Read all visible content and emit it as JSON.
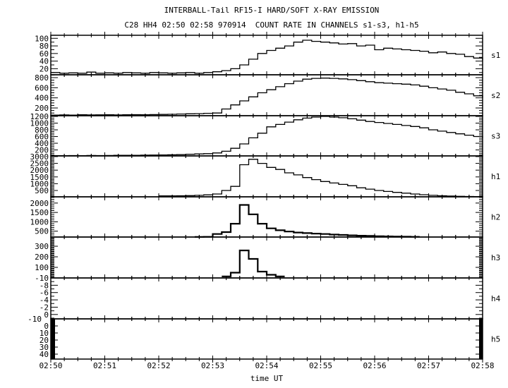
{
  "chart_data": {
    "type": "line",
    "title": "INTERBALL-Tail RF15-I HARD/SOFT X-RAY EMISSION",
    "subtitle": "C28 HH4 02:50 02:58 970914  COUNT RATE IN CHANNELS s1-s3, h1-h5",
    "xlabel": "time UT",
    "xlim": [
      "02:50:00",
      "02:58:00"
    ],
    "x_tick_labels": [
      "02:50",
      "02:51",
      "02:52",
      "02:53",
      "02:54",
      "02:55",
      "02:56",
      "02:57",
      "02:58"
    ],
    "grid": false,
    "line_color": "#000000",
    "background": "#ffffff",
    "x": [
      "02:50:00",
      "02:50:10",
      "02:50:20",
      "02:50:30",
      "02:50:40",
      "02:50:50",
      "02:51:00",
      "02:51:10",
      "02:51:20",
      "02:51:30",
      "02:51:40",
      "02:51:50",
      "02:52:00",
      "02:52:10",
      "02:52:20",
      "02:52:30",
      "02:52:40",
      "02:52:50",
      "02:53:00",
      "02:53:10",
      "02:53:20",
      "02:53:30",
      "02:53:40",
      "02:53:50",
      "02:54:00",
      "02:54:10",
      "02:54:20",
      "02:54:30",
      "02:54:40",
      "02:54:50",
      "02:55:00",
      "02:55:10",
      "02:55:20",
      "02:55:30",
      "02:55:40",
      "02:55:50",
      "02:56:00",
      "02:56:10",
      "02:56:20",
      "02:56:30",
      "02:56:40",
      "02:56:50",
      "02:57:00",
      "02:57:10",
      "02:57:20",
      "02:57:30",
      "02:57:40",
      "02:57:50",
      "02:58:00"
    ],
    "panels": [
      {
        "name": "s1",
        "ylim": [
          4,
          108
        ],
        "y_tick_labels": [
          20,
          40,
          60,
          80,
          100
        ],
        "minor_step": 10,
        "values": [
          10,
          8,
          9,
          8,
          11,
          8,
          9,
          8,
          10,
          9,
          8,
          10,
          9,
          8,
          9,
          10,
          8,
          10,
          12,
          15,
          20,
          30,
          45,
          60,
          68,
          74,
          80,
          90,
          95,
          92,
          90,
          88,
          85,
          86,
          80,
          82,
          70,
          74,
          72,
          70,
          68,
          66,
          62,
          64,
          60,
          58,
          52,
          48,
          42
        ]
      },
      {
        "name": "s2",
        "ylim": [
          47,
          856
        ],
        "y_tick_labels": [
          200,
          400,
          600,
          800
        ],
        "minor_step": 50,
        "values": [
          60,
          62,
          60,
          65,
          62,
          64,
          66,
          63,
          65,
          68,
          66,
          70,
          72,
          75,
          80,
          85,
          88,
          95,
          100,
          180,
          260,
          340,
          420,
          500,
          560,
          620,
          680,
          730,
          770,
          785,
          790,
          785,
          775,
          760,
          740,
          720,
          700,
          690,
          680,
          670,
          655,
          630,
          600,
          575,
          550,
          510,
          480,
          440,
          400
        ]
      },
      {
        "name": "s3",
        "ylim": [
          22,
          1222
        ],
        "y_tick_labels": [
          200,
          400,
          600,
          800,
          1000,
          1200
        ],
        "minor_step": 50,
        "values": [
          30,
          30,
          32,
          30,
          35,
          33,
          35,
          38,
          40,
          40,
          45,
          48,
          50,
          55,
          60,
          70,
          80,
          90,
          110,
          160,
          250,
          380,
          560,
          700,
          890,
          960,
          1030,
          1100,
          1150,
          1180,
          1200,
          1180,
          1160,
          1130,
          1090,
          1050,
          1020,
          990,
          960,
          930,
          900,
          860,
          800,
          760,
          720,
          680,
          640,
          600,
          560
        ]
      },
      {
        "name": "h1",
        "ylim": [
          32,
          3050
        ],
        "y_tick_labels": [
          500,
          1000,
          1500,
          2000,
          2500,
          3000
        ],
        "minor_step": 100,
        "values": [
          null,
          null,
          null,
          null,
          null,
          null,
          null,
          null,
          null,
          null,
          null,
          null,
          100,
          100,
          110,
          120,
          140,
          180,
          240,
          500,
          800,
          2400,
          2800,
          2500,
          2200,
          2050,
          1800,
          1650,
          1450,
          1300,
          1160,
          1050,
          950,
          850,
          700,
          600,
          500,
          430,
          360,
          300,
          240,
          190,
          140,
          110,
          90,
          70,
          60,
          55,
          50
        ]
      },
      {
        "name": "h2",
        "ylim": [
          188,
          2333
        ],
        "y_tick_labels": [
          500,
          1000,
          1500,
          2000
        ],
        "minor_step": 100,
        "values": [
          null,
          null,
          null,
          null,
          null,
          null,
          null,
          null,
          null,
          null,
          null,
          null,
          null,
          null,
          null,
          null,
          190,
          200,
          350,
          450,
          900,
          1900,
          1400,
          900,
          650,
          550,
          480,
          430,
          400,
          370,
          350,
          320,
          300,
          280,
          260,
          250,
          230,
          220,
          210,
          205,
          200,
          null,
          null,
          null,
          null,
          null,
          null,
          null,
          null
        ]
      },
      {
        "name": "h3",
        "ylim": [
          0,
          387
        ],
        "y_tick_labels": [
          100,
          200,
          300
        ],
        "minor_step": 10,
        "values": [
          null,
          null,
          null,
          null,
          null,
          null,
          null,
          null,
          null,
          null,
          null,
          null,
          null,
          null,
          null,
          null,
          null,
          null,
          null,
          15,
          50,
          260,
          180,
          60,
          30,
          15,
          null,
          null,
          null,
          null,
          null,
          null,
          null,
          null,
          null,
          null,
          null,
          null,
          null,
          null,
          null,
          null,
          null,
          null,
          null,
          null,
          null,
          null,
          null
        ]
      },
      {
        "name": "h4",
        "ylim": [
          1.2,
          -10
        ],
        "y_tick_labels": [
          -10,
          -8,
          -6,
          -4,
          -2,
          0
        ],
        "minor_step": 1,
        "values": []
      },
      {
        "name": "h5",
        "ylim": [
          47,
          -10
        ],
        "y_tick_labels": [
          -10,
          0,
          10,
          20,
          30,
          40
        ],
        "minor_step": 10,
        "values": [],
        "edge_bars": true
      }
    ]
  }
}
